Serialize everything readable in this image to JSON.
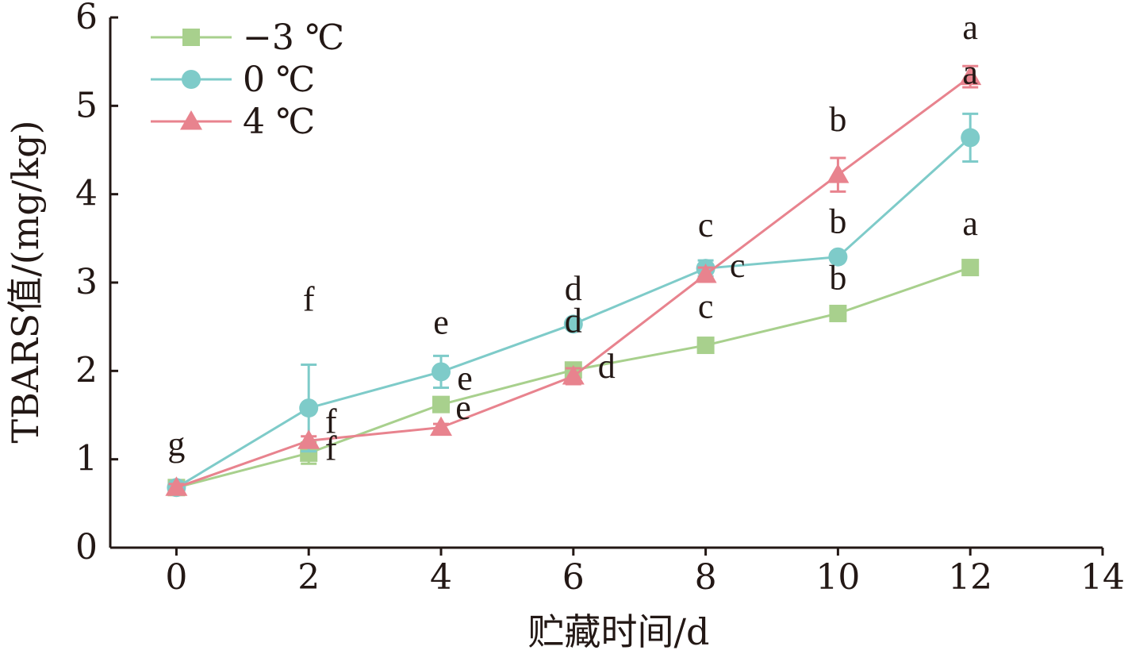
{
  "chart_data": {
    "type": "line",
    "title": "",
    "xlabel": "贮藏时间/d",
    "ylabel": "TBARS值/(mg/kg)",
    "xlim": [
      -1,
      14
    ],
    "ylim": [
      0,
      6
    ],
    "xticks": [
      0,
      2,
      4,
      6,
      8,
      10,
      12,
      14
    ],
    "yticks": [
      0,
      1,
      2,
      3,
      4,
      5,
      6
    ],
    "grid": false,
    "legend_position": "top-left",
    "x": [
      0,
      2,
      4,
      6,
      8,
      10,
      12
    ],
    "series": [
      {
        "name": "−3 ℃",
        "marker": "square",
        "color": "#a8d08d",
        "values": [
          0.68,
          1.07,
          1.62,
          2.01,
          2.29,
          2.65,
          3.17
        ],
        "errors": [
          0.04,
          0.12,
          0.04,
          0.05,
          0.04,
          0.04,
          0.08
        ],
        "labels": [
          "g",
          "f",
          "e",
          "d",
          "c",
          "b",
          "a"
        ]
      },
      {
        "name": "0 ℃",
        "marker": "circle",
        "color": "#7ecbc9",
        "values": [
          0.68,
          1.58,
          1.99,
          2.53,
          3.16,
          3.29,
          4.64
        ],
        "errors": [
          0.04,
          0.49,
          0.18,
          0.04,
          0.09,
          0.04,
          0.27
        ],
        "labels": [
          "",
          "f",
          "e",
          "d",
          "c",
          "b",
          "a"
        ]
      },
      {
        "name": "4 ℃",
        "marker": "triangle",
        "color": "#e8838e",
        "values": [
          0.68,
          1.21,
          1.36,
          1.94,
          3.09,
          4.22,
          5.33
        ],
        "errors": [
          0.04,
          0.05,
          0.04,
          0.09,
          0.08,
          0.19,
          0.12
        ],
        "labels": [
          "",
          "f",
          "e",
          "d",
          "c",
          "b",
          "a"
        ]
      }
    ]
  }
}
